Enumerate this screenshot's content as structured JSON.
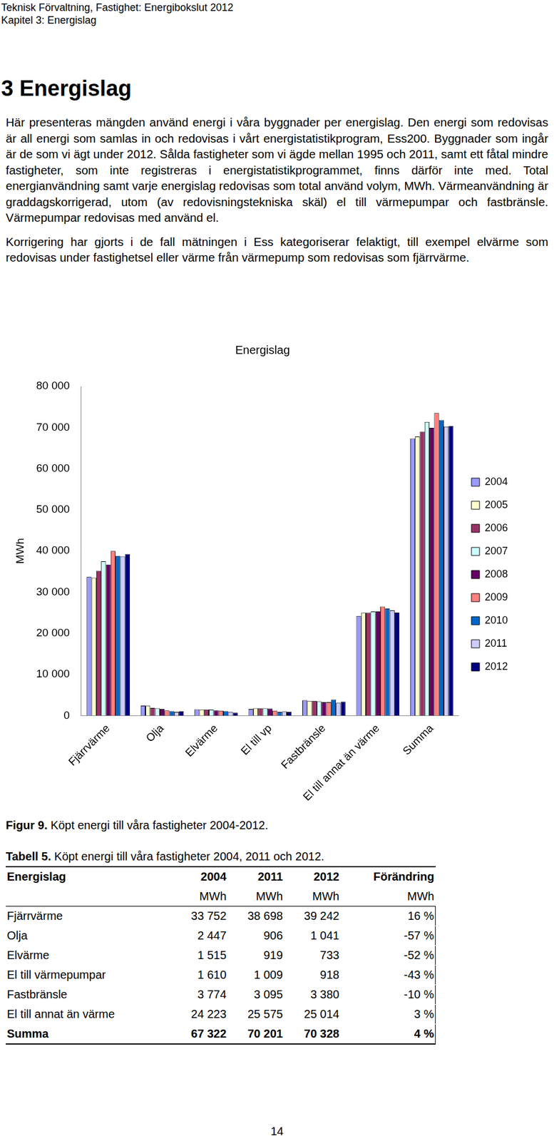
{
  "header": [
    "Teknisk Förvaltning, Fastighet: Energibokslut 2012",
    "Kapitel 3: Energislag"
  ],
  "heading": "3 Energislag",
  "paragraphs": [
    "Här presenteras mängden använd energi i våra byggnader per energislag. Den energi som redovisas är all energi som samlas in och redovisas i vårt energistatistikprogram, Ess200. Byggnader som ingår är de som vi ägt under 2012. Sålda fastigheter som vi ägde mellan 1995 och 2011, samt ett fåtal mindre fastigheter, som inte registreras i energistatistikprogrammet, finns därför inte med. Total energianvändning samt varje energislag redovisas som total använd volym, MWh. Värmeanvändning är graddagskorrigerad, utom (av redovisningstekniska skäl) el till värmepumpar och fastbränsle. Värmepumpar redovisas med använd el.",
    "Korrigering har gjorts i de fall mätningen i Ess kategoriserar felaktigt, till exempel elvärme som redovisas under fastighetsel eller värme från värmepump som redovisas som fjärrvärme."
  ],
  "chart_data": {
    "type": "bar",
    "title": "Energislag",
    "y_label": "MWh",
    "categories": [
      "Fjärrvärme",
      "Olja",
      "Elvärme",
      "El till vp",
      "Fastbränsle",
      "El till annat än värme",
      "Summa"
    ],
    "series": [
      {
        "name": "2004",
        "color": "#9999ff",
        "values": [
          33752,
          2447,
          1515,
          1610,
          3774,
          24223,
          67322
        ]
      },
      {
        "name": "2005",
        "color": "#ffffcc",
        "values": [
          33500,
          2400,
          1500,
          1800,
          3600,
          25000,
          67800
        ]
      },
      {
        "name": "2006",
        "color": "#993366",
        "values": [
          35200,
          1900,
          1500,
          1800,
          3600,
          25000,
          69000
        ]
      },
      {
        "name": "2007",
        "color": "#ccffff",
        "values": [
          37500,
          1800,
          1450,
          1800,
          3500,
          25300,
          71350
        ]
      },
      {
        "name": "2008",
        "color": "#660066",
        "values": [
          36700,
          1600,
          1300,
          1700,
          3300,
          25300,
          69900
        ]
      },
      {
        "name": "2009",
        "color": "#ff8080",
        "values": [
          40000,
          1300,
          1200,
          1200,
          3300,
          26500,
          73500
        ]
      },
      {
        "name": "2010",
        "color": "#0066cc",
        "values": [
          38800,
          1100,
          1100,
          900,
          3900,
          26000,
          71800
        ]
      },
      {
        "name": "2011",
        "color": "#ccccff",
        "values": [
          38698,
          906,
          919,
          1009,
          3095,
          25575,
          70201
        ]
      },
      {
        "name": "2012",
        "color": "#000080",
        "values": [
          39242,
          1041,
          733,
          918,
          3380,
          25014,
          70328
        ]
      }
    ],
    "ylim": [
      0,
      80000
    ],
    "yticks": [
      0,
      {
        "value": 10000,
        "label": "10 000"
      },
      {
        "value": 20000,
        "label": "20 000"
      },
      {
        "value": 30000,
        "label": "30 000"
      },
      {
        "value": 40000,
        "label": "40 000"
      },
      {
        "value": 50000,
        "label": "50 000"
      },
      {
        "value": 60000,
        "label": "60 000"
      },
      {
        "value": 70000,
        "label": "70 000"
      },
      {
        "value": 80000,
        "label": "80 000"
      }
    ],
    "grid": false,
    "legend": "right"
  },
  "figure_caption": {
    "label": "Figur 9.",
    "text": "Köpt energi till våra fastigheter 2004-2012."
  },
  "table_caption": {
    "label": "Tabell 5.",
    "text": "Köpt energi till våra fastigheter 2004, 2011 och 2012."
  },
  "table": {
    "columns": [
      "Energislag",
      "2004",
      "2011",
      "2012",
      "Förändring"
    ],
    "units": [
      "MWh",
      "MWh",
      "MWh",
      "MWh"
    ],
    "rows": [
      [
        "Fjärrvärme",
        "33 752",
        "38 698",
        "39 242",
        "16 %"
      ],
      [
        "Olja",
        "2 447",
        "906",
        "1 041",
        "-57 %"
      ],
      [
        "Elvärme",
        "1 515",
        "919",
        "733",
        "-52 %"
      ],
      [
        "El till värmepumpar",
        "1 610",
        "1 009",
        "918",
        "-43 %"
      ],
      [
        "Fastbränsle",
        "3 774",
        "3 095",
        "3 380",
        "-10 %"
      ],
      [
        "El till annat än värme",
        "24 223",
        "25 575",
        "25 014",
        "3 %"
      ],
      [
        "Summa",
        "67 322",
        "70 201",
        "70 328",
        "4 %"
      ]
    ]
  },
  "page_number": "14"
}
